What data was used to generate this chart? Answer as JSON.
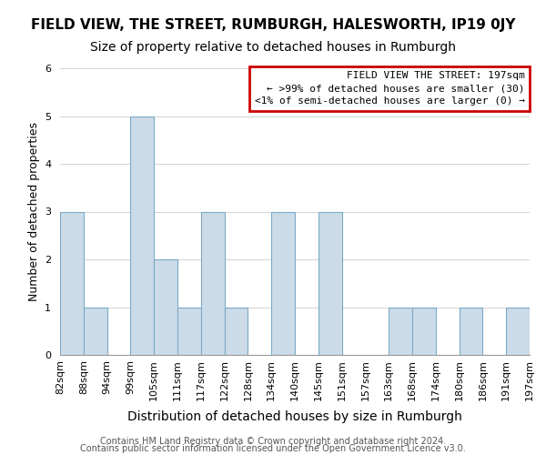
{
  "title": "FIELD VIEW, THE STREET, RUMBURGH, HALESWORTH, IP19 0JY",
  "subtitle": "Size of property relative to detached houses in Rumburgh",
  "xlabel": "Distribution of detached houses by size in Rumburgh",
  "ylabel": "Number of detached properties",
  "footer1": "Contains HM Land Registry data © Crown copyright and database right 2024.",
  "footer2": "Contains public sector information licensed under the Open Government Licence v3.0.",
  "bin_edges": [
    "82sqm",
    "88sqm",
    "94sqm",
    "99sqm",
    "105sqm",
    "111sqm",
    "117sqm",
    "122sqm",
    "128sqm",
    "134sqm",
    "140sqm",
    "145sqm",
    "151sqm",
    "157sqm",
    "163sqm",
    "168sqm",
    "174sqm",
    "180sqm",
    "186sqm",
    "191sqm",
    "197sqm"
  ],
  "values": [
    3,
    1,
    0,
    5,
    2,
    1,
    3,
    1,
    0,
    3,
    0,
    3,
    0,
    0,
    1,
    1,
    0,
    1,
    0,
    1
  ],
  "bar_color": "#ccdbe8",
  "bar_edge_color": "#7aaac8",
  "legend_box_edge_color": "#cc0000",
  "legend_title": "FIELD VIEW THE STREET: 197sqm",
  "legend_line1": "← >99% of detached houses are smaller (30)",
  "legend_line2": "<1% of semi-detached houses are larger (0) →",
  "ylim": [
    0,
    6
  ],
  "yticks": [
    0,
    1,
    2,
    3,
    4,
    5,
    6
  ],
  "title_fontsize": 11,
  "subtitle_fontsize": 10,
  "ylabel_fontsize": 9,
  "xlabel_fontsize": 10,
  "tick_fontsize": 8,
  "footer_fontsize": 7,
  "legend_fontsize": 8
}
